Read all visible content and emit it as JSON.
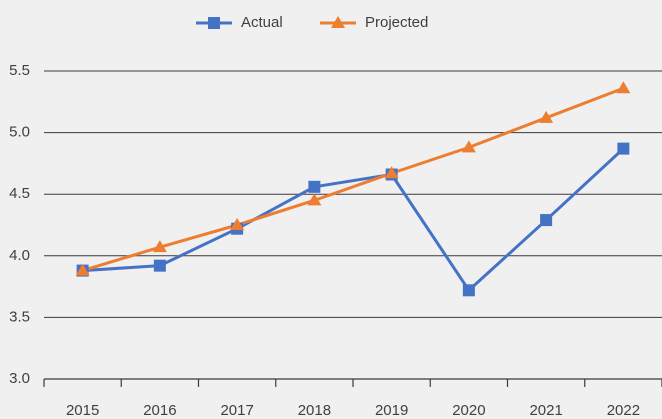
{
  "chart_data": {
    "type": "line",
    "categories": [
      "2015",
      "2016",
      "2017",
      "2018",
      "2019",
      "2020",
      "2021",
      "2022"
    ],
    "series": [
      {
        "name": "Actual",
        "color": "#4472c4",
        "marker": "square",
        "values": [
          3.88,
          3.92,
          4.22,
          4.56,
          4.66,
          3.72,
          4.29,
          4.87
        ]
      },
      {
        "name": "Projected",
        "color": "#ed7d31",
        "marker": "triangle",
        "values": [
          3.88,
          4.07,
          4.25,
          4.45,
          4.67,
          4.88,
          5.12,
          5.36
        ]
      }
    ],
    "ylim": [
      3,
      5.5
    ],
    "yticks": [
      {
        "value": 3,
        "label": "3.0"
      },
      3.5,
      {
        "value": 4,
        "label": "4.0"
      },
      4.5,
      {
        "value": 5,
        "label": "5.0"
      },
      5.5
    ],
    "grid": true,
    "legend": "top"
  }
}
